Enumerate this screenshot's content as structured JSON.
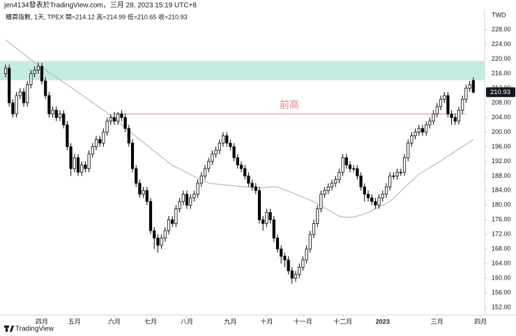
{
  "chart_data": {
    "type": "candlestick",
    "header": "jen4134發表於TradingView.com，三月 28, 2023 15:19 UTC+8",
    "subtitle": "櫃買指數, 1天, TPEX  開=214.12  高=214.99  低=210.65  收=210.93",
    "currency": "TWD",
    "logo": "TradingView",
    "categories": [
      null,
      null,
      null,
      null,
      null,
      null,
      null,
      null,
      null,
      null,
      "四月",
      null,
      null,
      null,
      null,
      null,
      null,
      null,
      null,
      "五月",
      null,
      null,
      null,
      null,
      null,
      null,
      null,
      null,
      null,
      null,
      "六月",
      null,
      null,
      null,
      null,
      null,
      null,
      null,
      null,
      null,
      "七月",
      null,
      null,
      null,
      null,
      null,
      null,
      null,
      null,
      null,
      "八月",
      null,
      null,
      null,
      null,
      null,
      null,
      null,
      null,
      null,
      null,
      null,
      "九月",
      null,
      null,
      null,
      null,
      null,
      null,
      null,
      null,
      null,
      "十月",
      null,
      null,
      null,
      null,
      null,
      null,
      null,
      null,
      null,
      "十一月",
      null,
      null,
      null,
      null,
      null,
      null,
      null,
      null,
      null,
      null,
      "十二月",
      null,
      null,
      null,
      null,
      null,
      null,
      null,
      null,
      null,
      null,
      "2023",
      null,
      null,
      null,
      null,
      null,
      null,
      null,
      null,
      null,
      null,
      null,
      null,
      null,
      null,
      "三月",
      null,
      null,
      null,
      null,
      null,
      null,
      null,
      null,
      null,
      null,
      null,
      "四月"
    ],
    "open": [
      216,
      217.5,
      208,
      205,
      210,
      211,
      208,
      213,
      216,
      217,
      218,
      214,
      210,
      205,
      206,
      204,
      205,
      202,
      196,
      190,
      193,
      189,
      191,
      190,
      194,
      196,
      198,
      197,
      200,
      203,
      204,
      203,
      205,
      204,
      201,
      197,
      190,
      186,
      183,
      184,
      181,
      173,
      171,
      169,
      171,
      173,
      176,
      175,
      179,
      181,
      183,
      180,
      182,
      183,
      186,
      188,
      190,
      192,
      194,
      195,
      197,
      199,
      197,
      196,
      193,
      191,
      190,
      188,
      186,
      185,
      184,
      176,
      175,
      178,
      176,
      171,
      168,
      166,
      165,
      162,
      160,
      161,
      163,
      165,
      168,
      172,
      175,
      179,
      183,
      184,
      185,
      186,
      187,
      189,
      193,
      191,
      190,
      190,
      188,
      185,
      183,
      182,
      181,
      180,
      182,
      183,
      185,
      188,
      188,
      189,
      189,
      193,
      197,
      199,
      200,
      201,
      200,
      202,
      203,
      205,
      207,
      209,
      210,
      205,
      204,
      203,
      206,
      209,
      212,
      214.12,
      null,
      null
    ],
    "high": [
      218.5,
      218.5,
      209,
      211,
      212,
      212,
      214,
      217,
      218,
      219,
      219,
      215,
      211,
      207,
      207,
      206,
      206,
      203,
      197,
      194,
      194,
      192,
      192,
      195,
      197,
      199,
      199,
      201,
      204,
      205,
      205.5,
      205.5,
      206,
      205,
      202,
      198,
      191,
      187,
      185,
      185,
      182,
      174,
      172,
      172,
      174,
      177,
      177,
      180,
      182,
      184,
      184,
      183,
      184,
      187,
      189,
      191,
      193,
      195,
      196,
      198,
      200,
      200,
      198,
      197,
      194,
      192,
      191,
      189,
      187,
      186,
      185,
      177,
      179,
      179,
      177,
      172,
      169,
      167,
      166,
      163,
      162,
      164,
      166,
      169,
      173,
      176,
      180,
      184,
      185,
      186,
      187,
      188,
      190,
      194,
      194,
      192,
      191,
      191,
      189,
      186,
      184,
      183,
      182,
      183,
      184,
      186,
      189,
      189,
      190,
      190,
      194,
      198,
      200,
      201,
      202,
      202,
      203,
      204,
      206,
      208,
      210,
      211,
      211,
      206,
      205,
      207,
      210,
      213,
      214,
      214.99,
      null,
      null
    ],
    "low": [
      215,
      207,
      204,
      204,
      209,
      207,
      207,
      212,
      215,
      216,
      213,
      209,
      204,
      204,
      203,
      203,
      201,
      195,
      188,
      189,
      188,
      188,
      189,
      189,
      193,
      195,
      196,
      196,
      199,
      202,
      202,
      202,
      203,
      200,
      196,
      189,
      185,
      182,
      182,
      180,
      172,
      168,
      167,
      168,
      170,
      172,
      174,
      174,
      178,
      180,
      179,
      179,
      181,
      182,
      185,
      187,
      189,
      191,
      193,
      194,
      196,
      196,
      195,
      192,
      190,
      189,
      187,
      185,
      184,
      183,
      175,
      173,
      174,
      175,
      170,
      167,
      164,
      163,
      161,
      158.5,
      159,
      160,
      162,
      164,
      167,
      171,
      174,
      178,
      182,
      183,
      184,
      185,
      186,
      188,
      190,
      189,
      189,
      187,
      184,
      181,
      181,
      180,
      179,
      179,
      181,
      182,
      184,
      187,
      187,
      188,
      188,
      192,
      196,
      198,
      199,
      199,
      199,
      201,
      202,
      204,
      206,
      208,
      204,
      202,
      202,
      202,
      205,
      208,
      211,
      210.65,
      null,
      null
    ],
    "close": [
      217.5,
      208,
      205,
      210,
      211,
      208,
      213,
      216,
      217,
      218,
      214,
      210,
      205,
      206,
      204,
      205,
      202,
      196,
      190,
      193,
      189,
      191,
      190,
      194,
      196,
      198,
      197,
      200,
      203,
      204,
      203,
      205,
      204,
      201,
      197,
      190,
      186,
      183,
      184,
      181,
      173,
      171,
      169,
      171,
      173,
      176,
      175,
      179,
      181,
      183,
      180,
      182,
      183,
      186,
      188,
      190,
      192,
      194,
      195,
      197,
      199,
      197,
      196,
      193,
      191,
      190,
      188,
      186,
      185,
      184,
      176,
      175,
      178,
      176,
      171,
      168,
      166,
      165,
      162,
      160,
      161,
      163,
      165,
      168,
      172,
      175,
      179,
      183,
      184,
      185,
      186,
      187,
      189,
      193,
      191,
      190,
      190,
      188,
      185,
      183,
      182,
      181,
      180,
      182,
      183,
      185,
      188,
      188,
      189,
      189,
      193,
      197,
      199,
      200,
      201,
      200,
      202,
      203,
      205,
      207,
      209,
      210,
      205,
      204,
      203,
      206,
      209,
      212,
      213,
      210.93,
      null,
      null
    ],
    "ma": {
      "color": "#b8b8b8",
      "values": [
        225.3,
        224.5,
        223.7,
        222.9,
        222.1,
        221.4,
        220.6,
        219.8,
        219.0,
        218.3,
        217.7,
        217.0,
        216.3,
        215.6,
        215.0,
        214.3,
        213.6,
        213.0,
        212.3,
        211.6,
        210.9,
        210.2,
        209.5,
        208.8,
        208.1,
        207.4,
        206.7,
        206.0,
        205.3,
        204.5,
        203.7,
        202.9,
        202.0,
        201.2,
        200.4,
        199.6,
        198.8,
        198.0,
        197.2,
        196.4,
        195.6,
        194.8,
        194.0,
        193.2,
        192.4,
        191.6,
        190.9,
        190.4,
        189.9,
        189.4,
        188.9,
        188.4,
        187.9,
        187.4,
        186.9,
        186.5,
        186.0,
        185.9,
        185.8,
        185.7,
        185.6,
        185.5,
        185.4,
        185.3,
        185.2,
        185.1,
        185.0,
        184.9,
        184.8,
        184.7,
        184.7,
        184.8,
        184.9,
        185.0,
        185.0,
        185.0,
        184.6,
        184.2,
        183.8,
        183.4,
        183.0,
        182.6,
        182.2,
        181.8,
        181.4,
        181.0,
        180.4,
        179.8,
        179.3,
        178.7,
        178.1,
        177.5,
        177.0,
        176.8,
        176.7,
        176.7,
        176.8,
        177.0,
        177.3,
        177.6,
        178.0,
        178.5,
        179.0,
        179.5,
        180.0,
        180.5,
        181.0,
        181.9,
        182.9,
        183.8,
        184.8,
        185.7,
        186.6,
        187.6,
        188.5,
        189.1,
        189.7,
        190.3,
        190.9,
        191.5,
        192.1,
        192.8,
        193.4,
        194.0,
        194.7,
        195.4,
        196.0,
        196.6,
        197.3,
        198.0,
        null,
        null
      ]
    },
    "zone": {
      "from": 214.2,
      "to": 219.5,
      "color": "#c5ece4"
    },
    "annotation": {
      "text": "前高",
      "value": 205,
      "color": "#f08080"
    },
    "ylim": [
      149.9,
      233.5
    ],
    "yticks": [
      {
        "value": 152,
        "label": "152.00"
      },
      {
        "value": 156,
        "label": "156.00"
      },
      {
        "value": 160,
        "label": "160.00"
      },
      {
        "value": 164,
        "label": "164.00"
      },
      {
        "value": 168,
        "label": "168.00"
      },
      {
        "value": 172,
        "label": "172.00"
      },
      {
        "value": 176,
        "label": "176.00"
      },
      {
        "value": 180,
        "label": "180.00"
      },
      {
        "value": 184,
        "label": "184.00"
      },
      {
        "value": 188,
        "label": "188.00"
      },
      {
        "value": 192,
        "label": "192.00"
      },
      {
        "value": 196,
        "label": "196.00"
      },
      {
        "value": 200,
        "label": "200.00"
      },
      {
        "value": 204,
        "label": "204.00"
      },
      {
        "value": 208,
        "label": "208.00"
      },
      {
        "value": 212,
        "label": "212.00"
      },
      {
        "value": 216,
        "label": "216.00"
      },
      {
        "value": 220,
        "label": "220.00"
      },
      {
        "value": 224,
        "label": "224.00"
      },
      {
        "value": 228,
        "label": "228.00"
      }
    ]
  }
}
